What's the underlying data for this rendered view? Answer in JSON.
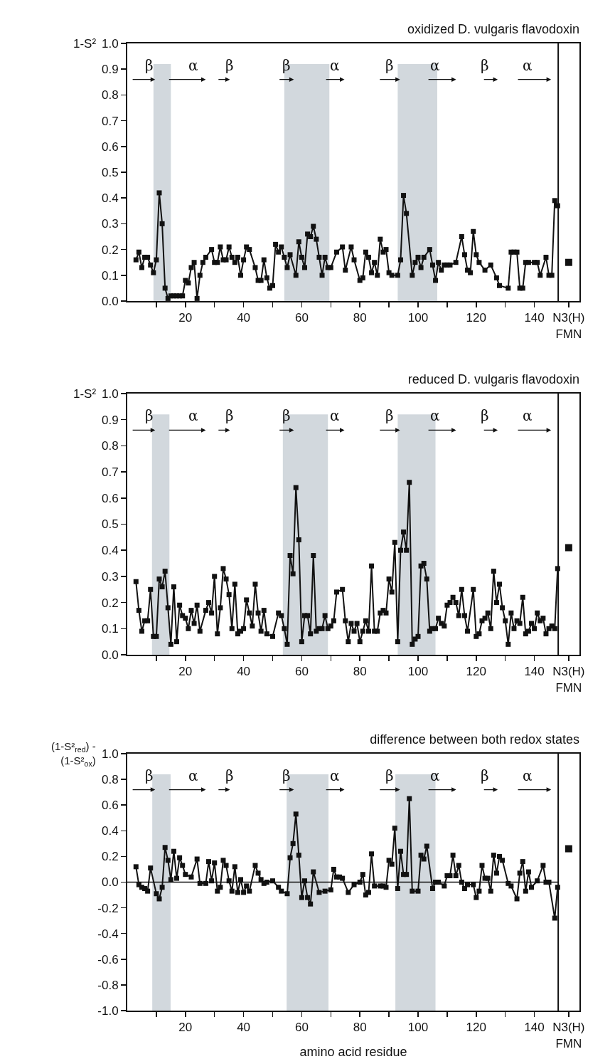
{
  "chart_data": [
    {
      "type": "line",
      "title": "oxidized D. vulgaris flavodoxin",
      "ylabel": "1-S²",
      "xlim": [
        0,
        155.5
      ],
      "ylim": [
        0,
        1
      ],
      "xticks": [
        {
          "value": 10,
          "label": null
        },
        20,
        {
          "value": 30,
          "label": null
        },
        40,
        {
          "value": 50,
          "label": null
        },
        60,
        {
          "value": 70,
          "label": null
        },
        80,
        {
          "value": 90,
          "label": null
        },
        100,
        {
          "value": 110,
          "label": null
        },
        120,
        {
          "value": 130,
          "label": null
        },
        140,
        {
          "value": 151.8,
          "label": "N3(H)\nFMN"
        }
      ],
      "yticks": [
        {
          "value": 0,
          "label": "0.0"
        },
        {
          "value": 0.1,
          "label": "0.1"
        },
        {
          "value": 0.2,
          "label": "0.2"
        },
        {
          "value": 0.3,
          "label": "0.3"
        },
        {
          "value": 0.4,
          "label": "0.4"
        },
        {
          "value": 0.5,
          "label": "0.5"
        },
        {
          "value": 0.6,
          "label": "0.6"
        },
        {
          "value": 0.7,
          "label": "0.7"
        },
        {
          "value": 0.8,
          "label": "0.8"
        },
        {
          "value": 0.9,
          "label": "0.9"
        },
        {
          "value": 1,
          "label": "1.0"
        }
      ],
      "grid": false,
      "marker": "square",
      "line_style": "solid",
      "series": [
        {
          "color": "#111111",
          "x": [
            3,
            4,
            5,
            6,
            7,
            8,
            9,
            10,
            11,
            12,
            13,
            14,
            15,
            16,
            17,
            18,
            19,
            20,
            21,
            22,
            23,
            24,
            25,
            26,
            27,
            29,
            30,
            31,
            32,
            33,
            34,
            35,
            36,
            37,
            38,
            39,
            40,
            41,
            42,
            44,
            45,
            46,
            47,
            48,
            49,
            50,
            51,
            52,
            53,
            54,
            55,
            56,
            58,
            59,
            60,
            61,
            62,
            63,
            64,
            65,
            66,
            67,
            68,
            69,
            70,
            72,
            74,
            75,
            77,
            78,
            80,
            81,
            82,
            83,
            84,
            85,
            86,
            87,
            88,
            89,
            90,
            91,
            93,
            94,
            95,
            96,
            98,
            99,
            100,
            101,
            102,
            104,
            105,
            106,
            107,
            108,
            109,
            110,
            111,
            113,
            115,
            116,
            117,
            118,
            119,
            120,
            121,
            123,
            125,
            127,
            128,
            131,
            132,
            133,
            134,
            135,
            136,
            137,
            138,
            140,
            141,
            142,
            144,
            145,
            146,
            147,
            148
          ],
          "values": [
            0.16,
            0.19,
            0.13,
            0.17,
            0.17,
            0.14,
            0.11,
            0.16,
            0.42,
            0.3,
            0.05,
            0.01,
            0.02,
            0.02,
            0.02,
            0.02,
            0.02,
            0.08,
            0.07,
            0.13,
            0.15,
            0.01,
            0.1,
            0.15,
            0.17,
            0.2,
            0.15,
            0.15,
            0.21,
            0.16,
            0.16,
            0.21,
            0.17,
            0.15,
            0.17,
            0.1,
            0.16,
            0.21,
            0.2,
            0.13,
            0.08,
            0.08,
            0.16,
            0.09,
            0.05,
            0.06,
            0.22,
            0.19,
            0.21,
            0.17,
            0.13,
            0.18,
            0.1,
            0.23,
            0.17,
            0.13,
            0.26,
            0.25,
            0.29,
            0.24,
            0.17,
            0.1,
            0.17,
            0.13,
            0.13,
            0.19,
            0.21,
            0.12,
            0.21,
            0.16,
            0.08,
            0.09,
            0.19,
            0.17,
            0.11,
            0.15,
            0.1,
            0.24,
            0.19,
            0.2,
            0.11,
            0.1,
            0.1,
            0.16,
            0.41,
            0.34,
            0.1,
            0.15,
            0.17,
            0.13,
            0.17,
            0.2,
            0.14,
            0.08,
            0.15,
            0.12,
            0.14,
            0.14,
            0.14,
            0.15,
            0.25,
            0.18,
            0.12,
            0.11,
            0.27,
            0.18,
            0.15,
            0.12,
            0.14,
            0.09,
            0.06,
            0.05,
            0.19,
            0.19,
            0.19,
            0.05,
            0.05,
            0.15,
            0.15,
            0.15,
            0.15,
            0.1,
            0.17,
            0.1,
            0.1,
            0.39,
            0.37
          ]
        },
        {
          "type": "scatter",
          "color": "#111111",
          "x": [
            151.8
          ],
          "values": [
            0.15
          ]
        }
      ],
      "bands": [
        {
          "axis": "x",
          "from": 9,
          "to": 15,
          "color": "#b4bec6"
        },
        {
          "axis": "x",
          "from": 54,
          "to": 69.5,
          "color": "#b4bec6"
        },
        {
          "axis": "x",
          "from": 93,
          "to": 106.6,
          "color": "#b4bec6"
        }
      ],
      "ref_lines": [
        {
          "axis": "x",
          "value": 148.2
        }
      ],
      "annotations": [
        "β",
        "α",
        "β",
        "β",
        "α",
        "β",
        "α",
        "β",
        "α"
      ]
    },
    {
      "type": "line",
      "title": "reduced D. vulgaris flavodoxin",
      "ylabel": "1-S²",
      "xlim": [
        0,
        155.5
      ],
      "ylim": [
        0,
        1
      ],
      "xticks": [
        {
          "value": 10,
          "label": null
        },
        20,
        {
          "value": 30,
          "label": null
        },
        40,
        {
          "value": 50,
          "label": null
        },
        60,
        {
          "value": 70,
          "label": null
        },
        80,
        {
          "value": 90,
          "label": null
        },
        100,
        {
          "value": 110,
          "label": null
        },
        120,
        {
          "value": 130,
          "label": null
        },
        140,
        {
          "value": 151.8,
          "label": "N3(H)\nFMN"
        }
      ],
      "yticks": [
        {
          "value": 0,
          "label": "0.0"
        },
        {
          "value": 0.1,
          "label": "0.1"
        },
        {
          "value": 0.2,
          "label": "0.2"
        },
        {
          "value": 0.3,
          "label": "0.3"
        },
        {
          "value": 0.4,
          "label": "0.4"
        },
        {
          "value": 0.5,
          "label": "0.5"
        },
        {
          "value": 0.6,
          "label": "0.6"
        },
        {
          "value": 0.7,
          "label": "0.7"
        },
        {
          "value": 0.8,
          "label": "0.8"
        },
        {
          "value": 0.9,
          "label": "0.9"
        },
        {
          "value": 1,
          "label": "1.0"
        }
      ],
      "grid": false,
      "marker": "square",
      "line_style": "solid",
      "series": [
        {
          "color": "#111111",
          "x": [
            3,
            4,
            5,
            6,
            7,
            8,
            9,
            10,
            11,
            12,
            13,
            14,
            15,
            16,
            17,
            18,
            19,
            20,
            21,
            22,
            23,
            24,
            25,
            27,
            28,
            29,
            30,
            31,
            32,
            33,
            34,
            35,
            36,
            37,
            38,
            39,
            40,
            41,
            42,
            43,
            44,
            45,
            46,
            47,
            48,
            50,
            52,
            53,
            54,
            55,
            56,
            57,
            58,
            59,
            60,
            61,
            62,
            63,
            64,
            65,
            66,
            67,
            68,
            69,
            70,
            71,
            72,
            74,
            75,
            76,
            77,
            78,
            79,
            80,
            81,
            82,
            83,
            84,
            85,
            86,
            87,
            88,
            89,
            90,
            91,
            92,
            93,
            94,
            95,
            96,
            97,
            98,
            99,
            100,
            101,
            102,
            103,
            104,
            105,
            106,
            107,
            108,
            109,
            110,
            111,
            112,
            113,
            114,
            115,
            116,
            117,
            119,
            120,
            121,
            122,
            123,
            124,
            125,
            126,
            127,
            128,
            129,
            130,
            131,
            132,
            133,
            134,
            135,
            136,
            137,
            138,
            139,
            140,
            141,
            142,
            143,
            144,
            145,
            146,
            147,
            148
          ],
          "values": [
            0.28,
            0.17,
            0.09,
            0.13,
            0.13,
            0.25,
            0.07,
            0.07,
            0.29,
            0.26,
            0.32,
            0.18,
            0.04,
            0.26,
            0.05,
            0.19,
            0.15,
            0.14,
            0.1,
            0.17,
            0.12,
            0.19,
            0.09,
            0.17,
            0.2,
            0.16,
            0.3,
            0.08,
            0.18,
            0.33,
            0.29,
            0.23,
            0.1,
            0.27,
            0.08,
            0.09,
            0.1,
            0.21,
            0.16,
            0.11,
            0.27,
            0.16,
            0.09,
            0.17,
            0.08,
            0.07,
            0.16,
            0.15,
            0.1,
            0.04,
            0.38,
            0.31,
            0.64,
            0.44,
            0.05,
            0.15,
            0.15,
            0.08,
            0.38,
            0.09,
            0.1,
            0.1,
            0.15,
            0.1,
            0.11,
            0.13,
            0.24,
            0.25,
            0.13,
            0.05,
            0.12,
            0.09,
            0.12,
            0.05,
            0.09,
            0.13,
            0.09,
            0.34,
            0.09,
            0.09,
            0.16,
            0.17,
            0.16,
            0.29,
            0.24,
            0.43,
            0.05,
            0.4,
            0.47,
            0.4,
            0.66,
            0.04,
            0.06,
            0.07,
            0.34,
            0.35,
            0.29,
            0.09,
            0.1,
            0.1,
            0.14,
            0.12,
            0.11,
            0.19,
            0.2,
            0.22,
            0.2,
            0.15,
            0.25,
            0.15,
            0.09,
            0.25,
            0.07,
            0.08,
            0.13,
            0.14,
            0.16,
            0.1,
            0.32,
            0.2,
            0.27,
            0.18,
            0.13,
            0.04,
            0.16,
            0.1,
            0.13,
            0.12,
            0.22,
            0.08,
            0.09,
            0.12,
            0.1,
            0.16,
            0.13,
            0.14,
            0.08,
            0.1,
            0.11,
            0.1,
            0.33
          ]
        },
        {
          "type": "scatter",
          "color": "#111111",
          "x": [
            151.8
          ],
          "values": [
            0.41
          ]
        }
      ],
      "bands": [
        {
          "axis": "x",
          "from": 8.5,
          "to": 14.5,
          "color": "#b4bec6"
        },
        {
          "axis": "x",
          "from": 53.5,
          "to": 69,
          "color": "#b4bec6"
        },
        {
          "axis": "x",
          "from": 93,
          "to": 106,
          "color": "#b4bec6"
        }
      ],
      "ref_lines": [
        {
          "axis": "x",
          "value": 148.2
        }
      ],
      "annotations": [
        "β",
        "α",
        "β",
        "β",
        "α",
        "β",
        "α",
        "β",
        "α"
      ]
    },
    {
      "type": "line",
      "title": "difference between both redox states",
      "ylabel": "(1-S²$_{red}$) -\n(1-S²$_{ox}$)",
      "xlabel": "amino acid residue",
      "xlim": [
        0,
        155.5
      ],
      "ylim": [
        -1,
        1
      ],
      "xticks": [
        {
          "value": 10,
          "label": null
        },
        20,
        {
          "value": 30,
          "label": null
        },
        40,
        {
          "value": 50,
          "label": null
        },
        60,
        {
          "value": 70,
          "label": null
        },
        80,
        {
          "value": 90,
          "label": null
        },
        100,
        {
          "value": 110,
          "label": null
        },
        120,
        {
          "value": 130,
          "label": null
        },
        140,
        {
          "value": 151.8,
          "label": "N3(H)\nFMN"
        }
      ],
      "yticks": [
        {
          "value": -1,
          "label": "-1.0"
        },
        {
          "value": -0.8,
          "label": "-0.8"
        },
        {
          "value": -0.6,
          "label": "-0.6"
        },
        {
          "value": -0.4,
          "label": "-0.4"
        },
        {
          "value": -0.2,
          "label": "-0.2"
        },
        {
          "value": 0,
          "label": "0.0"
        },
        {
          "value": 0.2,
          "label": "0.2"
        },
        {
          "value": 0.4,
          "label": "0.4"
        },
        {
          "value": 0.6,
          "label": "0.6"
        },
        {
          "value": 0.8,
          "label": "0.8"
        },
        {
          "value": 1,
          "label": "1.0"
        }
      ],
      "grid": false,
      "marker": "square",
      "line_style": "solid",
      "series": [
        {
          "color": "#111111",
          "x": [
            3,
            4,
            5,
            6,
            7,
            8,
            10,
            11,
            12,
            13,
            14,
            15,
            16,
            17,
            18,
            19,
            20,
            22,
            24,
            25,
            27,
            28,
            29,
            30,
            31,
            32,
            33,
            34,
            35,
            36,
            37,
            38,
            39,
            40,
            41,
            42,
            44,
            45,
            46,
            47,
            48,
            50,
            52,
            53,
            55,
            56,
            57,
            58,
            59,
            60,
            61,
            62,
            63,
            64,
            66,
            68,
            70,
            71,
            72,
            73,
            74,
            76,
            78,
            80,
            81,
            82,
            83,
            84,
            85,
            87,
            88,
            89,
            90,
            91,
            92,
            93,
            94,
            95,
            96,
            97,
            98,
            100,
            101,
            102,
            103,
            105,
            106,
            107,
            109,
            110,
            111,
            112,
            113,
            114,
            115,
            116,
            117,
            119,
            120,
            121,
            122,
            123,
            124,
            125,
            126,
            127,
            128,
            129,
            131,
            132,
            134,
            135,
            136,
            137,
            138,
            139,
            141,
            143,
            144,
            145,
            147,
            148
          ],
          "values": [
            0.12,
            -0.02,
            -0.04,
            -0.05,
            -0.07,
            0.11,
            -0.09,
            -0.13,
            -0.04,
            0.27,
            0.17,
            0.02,
            0.24,
            0.03,
            0.19,
            0.13,
            0.06,
            0.04,
            0.18,
            -0.01,
            -0.01,
            0.16,
            0.01,
            0.15,
            -0.07,
            -0.04,
            0.17,
            0.13,
            0.01,
            -0.07,
            0.12,
            -0.08,
            0.02,
            -0.08,
            -0.03,
            -0.07,
            0.13,
            0.07,
            0.02,
            -0.01,
            0.0,
            0.01,
            -0.04,
            -0.07,
            -0.09,
            0.19,
            0.3,
            0.53,
            0.21,
            -0.12,
            0.01,
            -0.12,
            -0.17,
            0.08,
            -0.08,
            -0.07,
            -0.06,
            0.1,
            0.04,
            0.04,
            0.03,
            -0.08,
            -0.02,
            0.0,
            0.06,
            -0.1,
            -0.08,
            0.22,
            -0.03,
            -0.03,
            -0.03,
            -0.04,
            0.17,
            0.14,
            0.42,
            -0.05,
            0.24,
            0.06,
            0.06,
            0.65,
            -0.07,
            -0.07,
            0.21,
            0.18,
            0.28,
            -0.05,
            0.0,
            0.0,
            -0.03,
            0.05,
            0.05,
            0.21,
            0.05,
            0.13,
            0.0,
            -0.05,
            -0.02,
            -0.02,
            -0.12,
            -0.07,
            0.13,
            0.03,
            0.03,
            -0.07,
            0.21,
            0.07,
            0.2,
            0.17,
            -0.01,
            -0.03,
            -0.13,
            0.07,
            0.16,
            -0.07,
            0.08,
            -0.04,
            0.01,
            0.13,
            0.0,
            0.0,
            -0.28,
            -0.04
          ]
        },
        {
          "type": "scatter",
          "color": "#111111",
          "x": [
            151.8
          ],
          "values": [
            0.26
          ]
        }
      ],
      "bands": [
        {
          "axis": "x",
          "from": 8.6,
          "to": 14.9,
          "color": "#b4bec6"
        },
        {
          "axis": "x",
          "from": 54.8,
          "to": 69.2,
          "color": "#b4bec6"
        },
        {
          "axis": "x",
          "from": 92.2,
          "to": 106,
          "color": "#b4bec6"
        }
      ],
      "ref_lines": [
        {
          "axis": "x",
          "value": 148.2
        },
        {
          "axis": "y",
          "value": 0
        }
      ],
      "annotations": [
        "β",
        "α",
        "β",
        "β",
        "α",
        "β",
        "α",
        "β",
        "α"
      ]
    }
  ]
}
